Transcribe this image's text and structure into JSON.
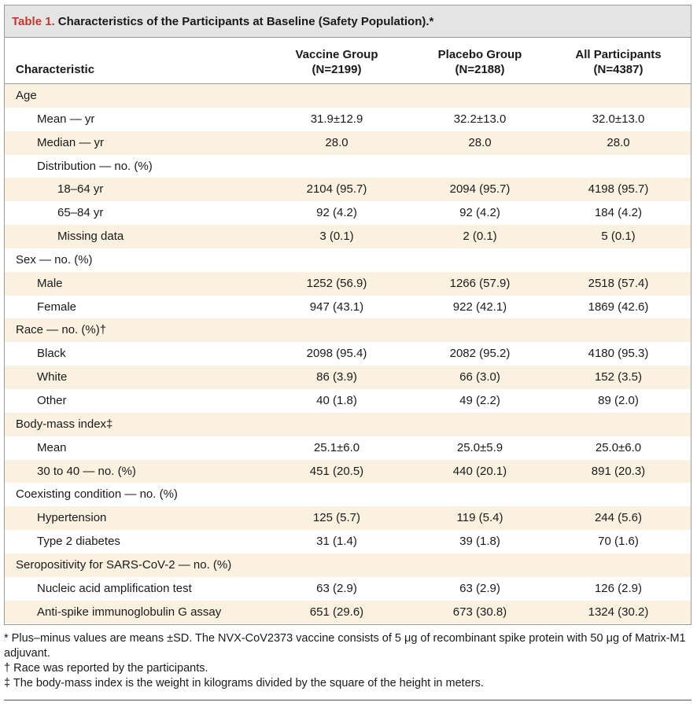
{
  "table": {
    "label": "Table 1.",
    "title": "Characteristics of the Participants at Baseline (Safety Population).*",
    "header": {
      "characteristic": "Characteristic",
      "col1_line1": "Vaccine Group",
      "col1_line2": "(N=2199)",
      "col2_line1": "Placebo Group",
      "col2_line2": "(N=2188)",
      "col3_line1": "All Participants",
      "col3_line2": "(N=4387)"
    },
    "rows": [
      {
        "label": "Age",
        "indent": 0,
        "v": [
          "",
          "",
          ""
        ]
      },
      {
        "label": "Mean — yr",
        "indent": 1,
        "v": [
          "31.9±12.9",
          "32.2±13.0",
          "32.0±13.0"
        ]
      },
      {
        "label": "Median — yr",
        "indent": 1,
        "v": [
          "28.0",
          "28.0",
          "28.0"
        ]
      },
      {
        "label": "Distribution — no. (%)",
        "indent": 1,
        "v": [
          "",
          "",
          ""
        ]
      },
      {
        "label": "18–64 yr",
        "indent": 2,
        "v": [
          "2104 (95.7)",
          "2094 (95.7)",
          "4198 (95.7)"
        ]
      },
      {
        "label": "65–84 yr",
        "indent": 2,
        "v": [
          "92 (4.2)",
          "92 (4.2)",
          "184 (4.2)"
        ]
      },
      {
        "label": "Missing data",
        "indent": 2,
        "v": [
          "3 (0.1)",
          "2 (0.1)",
          "5 (0.1)"
        ]
      },
      {
        "label": "Sex — no. (%)",
        "indent": 0,
        "v": [
          "",
          "",
          ""
        ]
      },
      {
        "label": "Male",
        "indent": 1,
        "v": [
          "1252 (56.9)",
          "1266 (57.9)",
          "2518 (57.4)"
        ]
      },
      {
        "label": "Female",
        "indent": 1,
        "v": [
          "947 (43.1)",
          "922 (42.1)",
          "1869 (42.6)"
        ]
      },
      {
        "label": "Race — no. (%)†",
        "indent": 0,
        "v": [
          "",
          "",
          ""
        ]
      },
      {
        "label": "Black",
        "indent": 1,
        "v": [
          "2098 (95.4)",
          "2082 (95.2)",
          "4180 (95.3)"
        ]
      },
      {
        "label": "White",
        "indent": 1,
        "v": [
          "86 (3.9)",
          "66 (3.0)",
          "152 (3.5)"
        ]
      },
      {
        "label": "Other",
        "indent": 1,
        "v": [
          "40 (1.8)",
          "49 (2.2)",
          "89 (2.0)"
        ]
      },
      {
        "label": "Body-mass index‡",
        "indent": 0,
        "v": [
          "",
          "",
          ""
        ]
      },
      {
        "label": "Mean",
        "indent": 1,
        "v": [
          "25.1±6.0",
          "25.0±5.9",
          "25.0±6.0"
        ]
      },
      {
        "label": "30 to 40 — no. (%)",
        "indent": 1,
        "v": [
          "451 (20.5)",
          "440 (20.1)",
          "891 (20.3)"
        ]
      },
      {
        "label": "Coexisting condition — no. (%)",
        "indent": 0,
        "v": [
          "",
          "",
          ""
        ]
      },
      {
        "label": "Hypertension",
        "indent": 1,
        "v": [
          "125 (5.7)",
          "119 (5.4)",
          "244 (5.6)"
        ]
      },
      {
        "label": "Type 2 diabetes",
        "indent": 1,
        "v": [
          "31 (1.4)",
          "39 (1.8)",
          "70 (1.6)"
        ]
      },
      {
        "label": "Seropositivity for SARS-CoV-2 — no. (%)",
        "indent": 0,
        "v": [
          "",
          "",
          ""
        ]
      },
      {
        "label": "Nucleic acid amplification test",
        "indent": 1,
        "v": [
          "63 (2.9)",
          "63 (2.9)",
          "126 (2.9)"
        ]
      },
      {
        "label": "Anti-spike immunoglobulin G assay",
        "indent": 1,
        "v": [
          "651 (29.6)",
          "673 (30.8)",
          "1324 (30.2)"
        ]
      }
    ],
    "footnotes": [
      "* Plus–minus values are means ±SD. The NVX-CoV2373 vaccine consists of 5 μg of recombinant spike protein with 50 μg of Matrix-M1 adjuvant.",
      "† Race was reported by the participants.",
      "‡ The body-mass index is the weight in kilograms divided by the square of the height in meters."
    ],
    "colors": {
      "title_label": "#c0392b",
      "shaded_row": "#fbf1e1",
      "title_bar": "#e4e4e4"
    }
  }
}
